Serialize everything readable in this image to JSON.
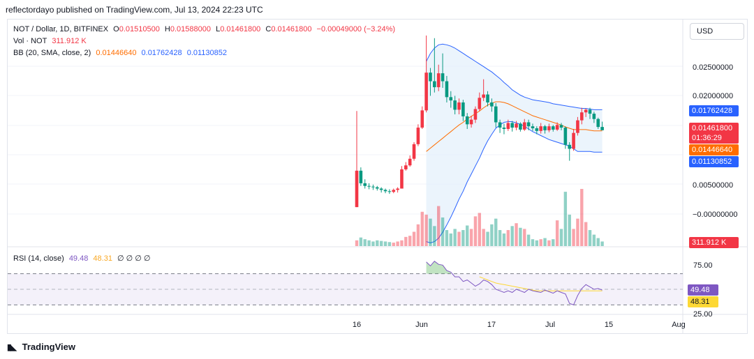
{
  "header": {
    "publisher": "reflectordayo published on TradingView.com, Jul 13, 2024 22:23 UTC"
  },
  "currency_button": "USD",
  "legend": {
    "symbol": "NOT / Dollar, 1D, BITFINEX",
    "o_label": "O",
    "o": "0.01510500",
    "h_label": "H",
    "h": "0.01588000",
    "l_label": "L",
    "l": "0.01461800",
    "c_label": "C",
    "c": "0.01461800",
    "change": "−0.00049000 (−3.24%)",
    "vol_label": "Vol · NOT",
    "vol": "311.912 K",
    "bb_label": "BB (20, SMA, close, 2)",
    "bb_basis": "0.01446640",
    "bb_upper": "0.01762428",
    "bb_lower": "0.01130852",
    "rsi_label": "RSI (14, close)",
    "rsi": "49.48",
    "rsi_ma": "48.31",
    "rsi_extra": "∅ ∅ ∅ ∅"
  },
  "price_tags": {
    "bb_upper": "0.01762428",
    "last": "0.01461800",
    "countdown": "01:36:29",
    "bb_basis": "0.01446640",
    "bb_lower": "0.01130852",
    "volume": "311.912 K",
    "rsi": "49.48",
    "rsi_ma": "48.31"
  },
  "footer": {
    "brand": "TradingView",
    "logo": "tradingview-logo"
  },
  "colors": {
    "up": "#089981",
    "down": "#f23645",
    "bb_band": "#2962ff",
    "bb_basis": "#ff6d00",
    "bb_fill": "#e3effb",
    "rsi": "#7e57c2",
    "rsi_ma": "#fdd835",
    "rsi_zone": "#ede7f6"
  },
  "chart_data": [
    {
      "type": "candlestick",
      "x_ticks": [
        "16",
        "Jun",
        "17",
        "Jul",
        "15",
        "Aug"
      ],
      "y_ticks": [
        "0.02500000",
        "0.02000000",
        "0.00500000",
        "−0.00000000"
      ],
      "ylim": [
        -0.0013,
        0.029
      ],
      "start_day": "2024-05-16",
      "candles": [
        [
          0.0085,
          0.0175,
          0.003,
          0.003
        ],
        [
          0.0066,
          0.009,
          0.0062,
          0.0085
        ],
        [
          0.0062,
          0.0072,
          0.0058,
          0.0066
        ],
        [
          0.0061,
          0.0066,
          0.0057,
          0.0062
        ],
        [
          0.006,
          0.0064,
          0.0056,
          0.0061
        ],
        [
          0.0058,
          0.0062,
          0.0055,
          0.006
        ],
        [
          0.0056,
          0.006,
          0.0052,
          0.0058
        ],
        [
          0.0054,
          0.0058,
          0.0051,
          0.0056
        ],
        [
          0.0053,
          0.0057,
          0.005,
          0.0054
        ],
        [
          0.0056,
          0.0058,
          0.0051,
          0.0053
        ],
        [
          0.0058,
          0.006,
          0.0052,
          0.0056
        ],
        [
          0.0087,
          0.0092,
          0.0058,
          0.0058
        ],
        [
          0.0093,
          0.0098,
          0.0085,
          0.0087
        ],
        [
          0.0103,
          0.0108,
          0.0091,
          0.0093
        ],
        [
          0.0125,
          0.0128,
          0.01,
          0.0103
        ],
        [
          0.015,
          0.0155,
          0.0122,
          0.0125
        ],
        [
          0.0176,
          0.0182,
          0.0148,
          0.015
        ],
        [
          0.0233,
          0.0289,
          0.0173,
          0.0176
        ],
        [
          0.022,
          0.024,
          0.0198,
          0.0233
        ],
        [
          0.0211,
          0.0285,
          0.0203,
          0.022
        ],
        [
          0.0232,
          0.0245,
          0.0205,
          0.0211
        ],
        [
          0.022,
          0.0262,
          0.021,
          0.0232
        ],
        [
          0.0196,
          0.0228,
          0.0188,
          0.022
        ],
        [
          0.0191,
          0.0205,
          0.018,
          0.0196
        ],
        [
          0.0177,
          0.0198,
          0.017,
          0.0191
        ],
        [
          0.0188,
          0.0194,
          0.017,
          0.0177
        ],
        [
          0.0167,
          0.0192,
          0.016,
          0.0188
        ],
        [
          0.0155,
          0.0172,
          0.0148,
          0.0167
        ],
        [
          0.0162,
          0.0168,
          0.015,
          0.0155
        ],
        [
          0.0178,
          0.0182,
          0.0157,
          0.0162
        ],
        [
          0.0195,
          0.0203,
          0.0175,
          0.0178
        ],
        [
          0.02,
          0.0223,
          0.019,
          0.0195
        ],
        [
          0.0188,
          0.0205,
          0.0182,
          0.02
        ],
        [
          0.0182,
          0.0194,
          0.0174,
          0.0188
        ],
        [
          0.0158,
          0.0187,
          0.015,
          0.0182
        ],
        [
          0.015,
          0.0162,
          0.0142,
          0.0158
        ],
        [
          0.0148,
          0.0156,
          0.014,
          0.015
        ],
        [
          0.0157,
          0.0162,
          0.0145,
          0.0148
        ],
        [
          0.015,
          0.016,
          0.0144,
          0.0157
        ],
        [
          0.0156,
          0.016,
          0.0146,
          0.015
        ],
        [
          0.0147,
          0.0158,
          0.0144,
          0.0156
        ],
        [
          0.0158,
          0.0163,
          0.0145,
          0.0147
        ],
        [
          0.0152,
          0.0162,
          0.0146,
          0.0158
        ],
        [
          0.0149,
          0.0156,
          0.0145,
          0.0152
        ],
        [
          0.0145,
          0.0152,
          0.014,
          0.0149
        ],
        [
          0.0152,
          0.0157,
          0.0141,
          0.0145
        ],
        [
          0.0146,
          0.0154,
          0.0141,
          0.0152
        ],
        [
          0.0152,
          0.0156,
          0.0143,
          0.0146
        ],
        [
          0.0147,
          0.0154,
          0.0144,
          0.0152
        ],
        [
          0.0154,
          0.0158,
          0.0145,
          0.0147
        ],
        [
          0.015,
          0.0157,
          0.0146,
          0.0154
        ],
        [
          0.0124,
          0.0152,
          0.0118,
          0.015
        ],
        [
          0.0118,
          0.0128,
          0.01,
          0.0124
        ],
        [
          0.0142,
          0.0148,
          0.0115,
          0.0118
        ],
        [
          0.0161,
          0.0166,
          0.0138,
          0.0142
        ],
        [
          0.0173,
          0.018,
          0.0155,
          0.0161
        ],
        [
          0.0177,
          0.0179,
          0.0166,
          0.0173
        ],
        [
          0.0171,
          0.018,
          0.0163,
          0.0177
        ],
        [
          0.0163,
          0.0174,
          0.0157,
          0.0171
        ],
        [
          0.0151,
          0.0165,
          0.0148,
          0.0163
        ],
        [
          0.0146,
          0.0159,
          0.0146,
          0.0151
        ]
      ],
      "bb": {
        "start_index": 17,
        "upper": [
          0.025,
          0.0262,
          0.027,
          0.0275,
          0.0276,
          0.0275,
          0.0273,
          0.027,
          0.0266,
          0.0262,
          0.0258,
          0.0254,
          0.025,
          0.0246,
          0.0242,
          0.0238,
          0.0234,
          0.0229,
          0.0224,
          0.0218,
          0.0213,
          0.0207,
          0.0203,
          0.0199,
          0.0196,
          0.0194,
          0.0192,
          0.0191,
          0.019,
          0.0189,
          0.0188,
          0.0186,
          0.0185,
          0.0184,
          0.0183,
          0.0182,
          0.0181,
          0.018,
          0.0179,
          0.0179,
          0.0178,
          0.0177,
          0.0177,
          0.0177
        ],
        "basis": [
          0.0114,
          0.0119,
          0.0124,
          0.0129,
          0.0134,
          0.0139,
          0.0144,
          0.0149,
          0.0154,
          0.0158,
          0.0163,
          0.0167,
          0.0171,
          0.0175,
          0.018,
          0.0184,
          0.0187,
          0.0189,
          0.0189,
          0.0188,
          0.0186,
          0.0183,
          0.018,
          0.0177,
          0.0174,
          0.0171,
          0.0168,
          0.0166,
          0.0164,
          0.0162,
          0.016,
          0.0158,
          0.0156,
          0.0154,
          0.0151,
          0.0149,
          0.0147,
          0.0147,
          0.0147,
          0.0147,
          0.0146,
          0.0145,
          0.0145,
          0.0145
        ],
        "lower": [
          -0.0022,
          -0.0024,
          -0.0022,
          -0.0017,
          -0.0008,
          0.0003,
          0.0015,
          0.0028,
          0.0042,
          0.0054,
          0.0068,
          0.008,
          0.0092,
          0.0104,
          0.0118,
          0.013,
          0.014,
          0.0149,
          0.0154,
          0.0158,
          0.0159,
          0.0159,
          0.0157,
          0.0155,
          0.0152,
          0.0148,
          0.0144,
          0.0141,
          0.0138,
          0.0135,
          0.0132,
          0.013,
          0.0128,
          0.0126,
          0.0124,
          0.0122,
          0.0118,
          0.0114,
          0.0114,
          0.0114,
          0.0114,
          0.0113,
          0.0113,
          0.0113
        ]
      }
    },
    {
      "type": "bar",
      "name": "volume",
      "values": [
        0.1,
        0.15,
        0.12,
        0.1,
        0.08,
        0.1,
        0.09,
        0.08,
        0.07,
        0.06,
        0.08,
        0.1,
        0.16,
        0.18,
        0.25,
        0.38,
        0.6,
        0.55,
        0.48,
        0.35,
        0.7,
        0.5,
        0.28,
        0.22,
        0.3,
        0.25,
        0.28,
        0.36,
        0.3,
        0.52,
        0.58,
        0.3,
        0.25,
        0.38,
        0.48,
        0.28,
        0.22,
        0.28,
        0.35,
        0.4,
        0.32,
        0.3,
        0.2,
        0.12,
        0.1,
        0.12,
        0.14,
        0.1,
        0.12,
        0.45,
        0.3,
        0.95,
        0.55,
        0.3,
        0.48,
        1.0,
        0.42,
        0.28,
        0.2,
        0.14,
        0.08
      ]
    },
    {
      "type": "line",
      "name": "rsi",
      "ylim": [
        25,
        75
      ],
      "y_ticks": [
        "75.00",
        "25.00"
      ],
      "start_index": 17,
      "rsi": [
        85,
        80,
        86,
        82,
        81,
        74,
        72,
        66,
        66,
        60,
        62,
        58,
        54,
        57,
        62,
        60,
        56,
        50,
        48,
        46,
        48,
        46,
        50,
        48,
        46,
        50,
        48,
        47,
        46,
        49,
        47,
        45,
        48,
        46,
        44,
        32,
        30,
        42,
        51,
        56,
        53,
        50,
        51,
        49
      ],
      "ma_start_index": 30,
      "ma": [
        66,
        64,
        62,
        60,
        58,
        57,
        56,
        55,
        54,
        53,
        52,
        51,
        50,
        49,
        48,
        48,
        48,
        48,
        48,
        48,
        48,
        48,
        48,
        48,
        48,
        48,
        48,
        48,
        48,
        48,
        48
      ]
    }
  ]
}
